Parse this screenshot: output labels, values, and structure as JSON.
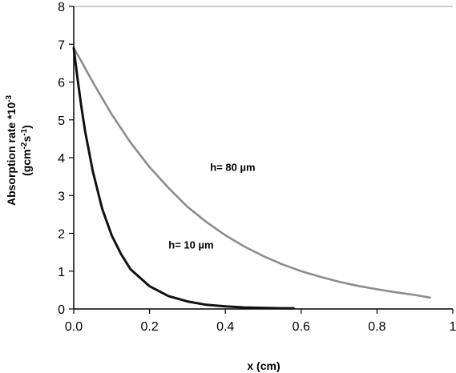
{
  "chart_data": {
    "type": "line",
    "title": "",
    "xlabel": "x (cm)",
    "ylabel_line1": "Absorption rate *10",
    "ylabel_line1_sup": "-3",
    "ylabel_line2_pre": "(gcm",
    "ylabel_line2_sup1": "-2",
    "ylabel_line2_mid": "s",
    "ylabel_line2_sup2": "-1",
    "ylabel_line2_post": ")",
    "xlim": [
      0,
      1
    ],
    "ylim": [
      0,
      8
    ],
    "xticks": [
      "0.0",
      "0.2",
      "0.4",
      "0.6",
      "0.8",
      "1"
    ],
    "yticks": [
      "0",
      "1",
      "2",
      "3",
      "4",
      "5",
      "6",
      "7",
      "8"
    ],
    "grid": false,
    "series": [
      {
        "name": "h= 80 µm",
        "color": "#8c8c8c",
        "x": [
          0.0,
          0.02,
          0.05,
          0.1,
          0.15,
          0.2,
          0.25,
          0.3,
          0.35,
          0.4,
          0.45,
          0.5,
          0.55,
          0.6,
          0.65,
          0.7,
          0.75,
          0.8,
          0.85,
          0.9,
          0.94
        ],
        "y": [
          6.9,
          6.55,
          6.0,
          5.15,
          4.4,
          3.75,
          3.2,
          2.7,
          2.3,
          1.95,
          1.65,
          1.4,
          1.18,
          1.0,
          0.85,
          0.72,
          0.61,
          0.52,
          0.44,
          0.37,
          0.3
        ]
      },
      {
        "name": "h= 10 µm",
        "color": "#111111",
        "x": [
          0.0,
          0.01,
          0.02,
          0.03,
          0.05,
          0.075,
          0.1,
          0.125,
          0.15,
          0.2,
          0.25,
          0.3,
          0.35,
          0.4,
          0.45,
          0.5,
          0.55,
          0.58
        ],
        "y": [
          6.9,
          6.1,
          5.35,
          4.7,
          3.65,
          2.65,
          1.95,
          1.45,
          1.05,
          0.6,
          0.34,
          0.2,
          0.11,
          0.07,
          0.04,
          0.03,
          0.02,
          0.02
        ]
      }
    ],
    "annotations": [
      {
        "text": "h= 80 µm",
        "x": 0.36,
        "y": 3.65
      },
      {
        "text": "h= 10 µm",
        "x": 0.25,
        "y": 1.6
      }
    ]
  }
}
